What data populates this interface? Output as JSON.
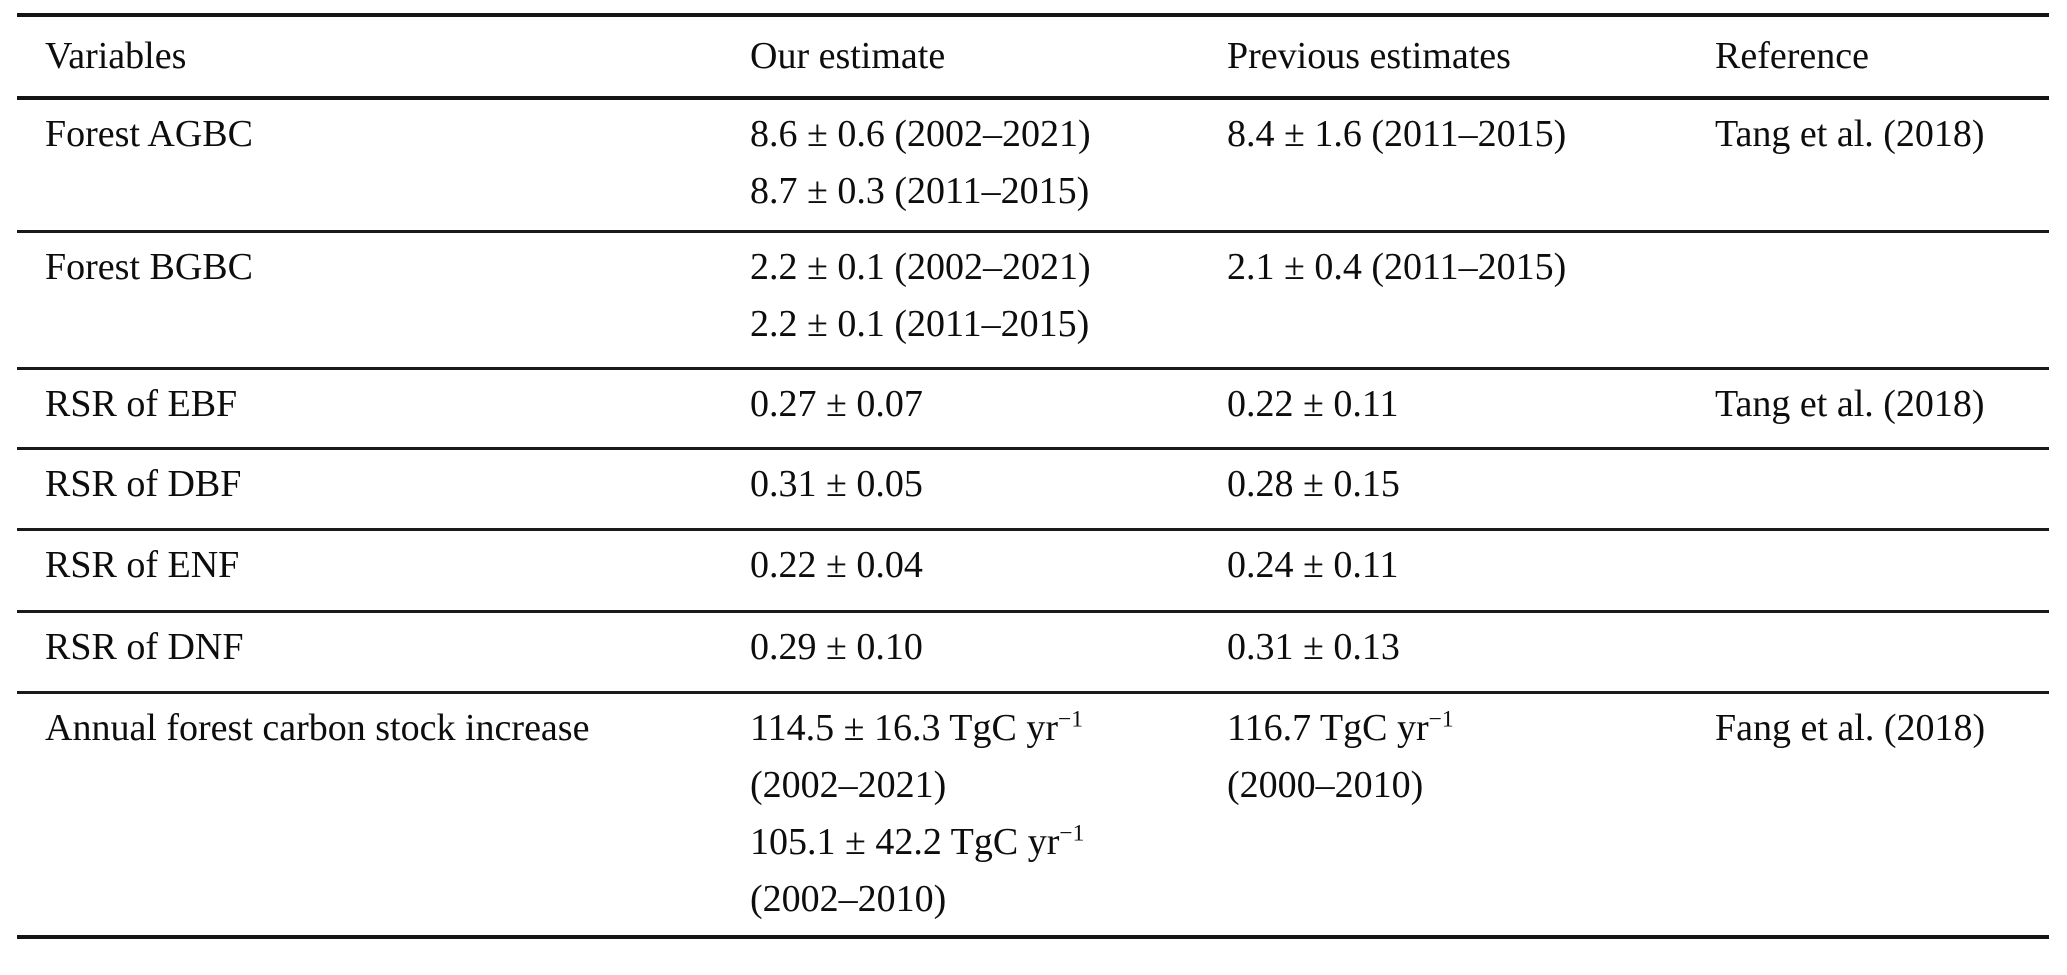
{
  "table": {
    "columns": {
      "variables": "Variables",
      "our_estimate": "Our estimate",
      "previous_estimates": "Previous estimates",
      "reference": "Reference"
    },
    "rows": [
      {
        "variable": "Forest AGBC",
        "our_estimate": [
          {
            "text": "8.6 ± 0.6 (2002–2021)"
          },
          {
            "text": "8.7 ± 0.3 (2011–2015)"
          }
        ],
        "previous_estimates": [
          {
            "text": "8.4 ± 1.6 (2011–2015)"
          }
        ],
        "reference": "Tang et al. (2018)"
      },
      {
        "variable": "Forest BGBC",
        "our_estimate": [
          {
            "text": "2.2 ± 0.1 (2002–2021)"
          },
          {
            "text": "2.2 ± 0.1 (2011–2015)"
          }
        ],
        "previous_estimates": [
          {
            "text": "2.1 ± 0.4 (2011–2015)"
          }
        ],
        "reference": ""
      },
      {
        "variable": "RSR of EBF",
        "our_estimate": [
          {
            "text": "0.27 ± 0.07"
          }
        ],
        "previous_estimates": [
          {
            "text": "0.22 ± 0.11"
          }
        ],
        "reference": "Tang et al. (2018)"
      },
      {
        "variable": "RSR of DBF",
        "our_estimate": [
          {
            "text": "0.31 ± 0.05"
          }
        ],
        "previous_estimates": [
          {
            "text": "0.28 ± 0.15"
          }
        ],
        "reference": ""
      },
      {
        "variable": "RSR of ENF",
        "our_estimate": [
          {
            "text": "0.22 ± 0.04"
          }
        ],
        "previous_estimates": [
          {
            "text": "0.24 ± 0.11"
          }
        ],
        "reference": ""
      },
      {
        "variable": "RSR of DNF",
        "our_estimate": [
          {
            "text": "0.29 ± 0.10"
          }
        ],
        "previous_estimates": [
          {
            "text": "0.31 ± 0.13"
          }
        ],
        "reference": ""
      },
      {
        "variable": "Annual forest carbon stock increase",
        "our_estimate": [
          {
            "text": "114.5 ± 16.3 TgC yr",
            "sup": "−1"
          },
          {
            "text": "(2002–2021)"
          },
          {
            "text": "105.1 ± 42.2 TgC yr",
            "sup": "−1"
          },
          {
            "text": "(2002–2010)"
          }
        ],
        "previous_estimates": [
          {
            "text": "116.7 TgC yr",
            "sup": "−1"
          },
          {
            "text": "(2000–2010)"
          }
        ],
        "reference": "Fang et al. (2018)"
      }
    ],
    "colors": {
      "text": "#0d0d0d",
      "rule": "#141414",
      "background": "#ffffff"
    }
  }
}
